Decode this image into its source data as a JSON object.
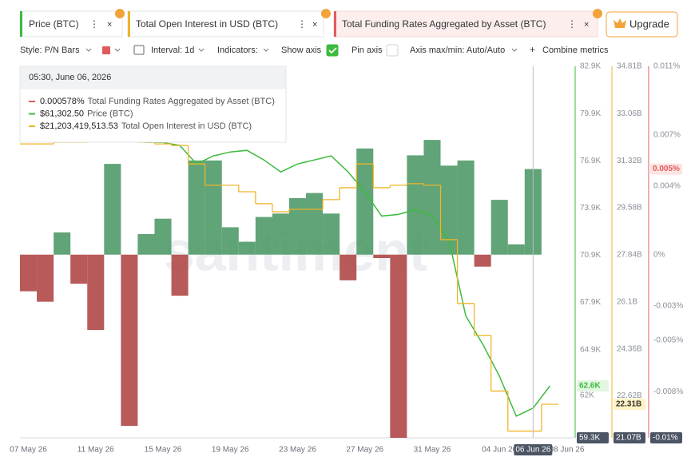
{
  "upgrade": "Upgrade",
  "watermark": "santiment",
  "toolbar": {
    "style": "Style: P/N Bars",
    "interval": "Interval: 1d",
    "indicators": "Indicators:",
    "show_axis": "Show axis",
    "show_axis_checked": true,
    "pin_axis": "Pin axis",
    "pin_axis_checked": false,
    "axis_minmax": "Axis max/min: Auto/Auto",
    "combine": "Combine metrics"
  },
  "tooltip": {
    "date": "05:30, June 06, 2026",
    "order": [
      2,
      0,
      1
    ]
  },
  "chart_data": {
    "type": "bar",
    "categories": [
      "07 May 26",
      null,
      null,
      null,
      "11 May 26",
      null,
      null,
      null,
      "15 May 26",
      null,
      null,
      null,
      "19 May 26",
      null,
      null,
      null,
      "23 May 26",
      null,
      null,
      null,
      "27 May 26",
      null,
      null,
      null,
      "31 May 26",
      null,
      null,
      null,
      "04 Jun 26",
      null,
      "06 Jun 26",
      null,
      "08 Jun 26"
    ],
    "ylim": [
      59300,
      82900
    ],
    "yticks": [
      {
        "value": 82900,
        "label": "82.9K"
      },
      {
        "value": 79900,
        "label": "79.9K"
      },
      {
        "value": 76900,
        "label": "76.9K"
      },
      {
        "value": 73900,
        "label": "73.9K"
      },
      {
        "value": 70900,
        "label": "70.9K"
      },
      {
        "value": 67900,
        "label": "67.9K"
      },
      {
        "value": 64900,
        "label": "64.9K"
      },
      {
        "value": 62000,
        "label": "62K"
      }
    ],
    "y2lim": [
      21070000000,
      34810000000
    ],
    "y2ticks": [
      {
        "value": 34810000000,
        "label": "34.81B"
      },
      {
        "value": 33060000000,
        "label": "33.06B"
      },
      {
        "value": 31320000000,
        "label": "31.32B"
      },
      {
        "value": 29580000000,
        "label": "29.58B"
      },
      {
        "value": 27840000000,
        "label": "27.84B"
      },
      {
        "value": 26100000000,
        "label": "26.1B"
      },
      {
        "value": 24360000000,
        "label": "24.36B"
      },
      {
        "value": 22620000000,
        "label": "22.62B"
      }
    ],
    "y3lim": [
      -0.0107,
      0.011
    ],
    "y3ticks": [
      {
        "value": 0.011,
        "label": "0.011%"
      },
      {
        "value": 0.007,
        "label": "0.007%"
      },
      {
        "value": 0.004,
        "label": "0.004%"
      },
      {
        "value": 0,
        "label": "0%"
      },
      {
        "value": -0.003,
        "label": "-0.003%"
      },
      {
        "value": -0.005,
        "label": "-0.005%"
      },
      {
        "value": -0.008,
        "label": "-0.008%"
      }
    ],
    "grid": false,
    "crosshair": {
      "index": 30,
      "y": {
        "value": 59300,
        "label": "59.3K"
      },
      "y2": {
        "value": 21070000000,
        "label": "21.07B"
      },
      "y3": {
        "value": -0.0107,
        "label": "-0.01%"
      }
    },
    "series": [
      {
        "name": "Price (BTC)",
        "type": "line",
        "axis": "y",
        "color": "#3dbb3d",
        "values": [
          78480,
          78220,
          78375,
          78580,
          78480,
          78375,
          78220,
          78070,
          78070,
          77870,
          76700,
          77210,
          77460,
          77560,
          76950,
          76190,
          76700,
          76950,
          77210,
          76190,
          74920,
          73390,
          73490,
          73800,
          73390,
          71870,
          67040,
          65260,
          63220,
          60680,
          61190,
          62600,
          null
        ],
        "current": {
          "value": 62600,
          "label": "62.6K"
        },
        "hover": {
          "value": 61302.5,
          "label": "$61,302.50"
        }
      },
      {
        "name": "Total Open Interest in USD (BTC)",
        "type": "step",
        "axis": "y2",
        "color": "#f0b429",
        "values": [
          31940000000,
          31940000000,
          32000000000,
          32000000000,
          32090000000,
          32090000000,
          32090000000,
          32000000000,
          31940000000,
          31880000000,
          31200000000,
          30410000000,
          30410000000,
          30170000000,
          29730000000,
          29430000000,
          29520000000,
          29520000000,
          29880000000,
          30320000000,
          31200000000,
          30320000000,
          30410000000,
          30470000000,
          30410000000,
          28400000000,
          26040000000,
          24860000000,
          22800000000,
          21320000000,
          21320000000,
          22310000000,
          null
        ],
        "current": {
          "value": 22310000000,
          "label": "22.31B"
        },
        "hover": {
          "value": 21203419513.53,
          "label": "$21,203,419,513.53"
        }
      },
      {
        "name": "Total Funding Rates Aggregated by Asset (BTC)",
        "type": "bar",
        "axis": "y3",
        "color": "#e05c5c",
        "positive_color": "#4f9a68",
        "negative_color": "#b04848",
        "values": [
          -0.00214,
          -0.00275,
          0.0013,
          -0.0017,
          -0.0044,
          0.0053,
          -0.01,
          0.0012,
          0.0021,
          -0.0024,
          0.0055,
          0.0055,
          0.0016,
          0.00075,
          0.0022,
          0.0024,
          0.0033,
          0.0036,
          0.0024,
          -0.0015,
          0.0062,
          -0.0002,
          -0.0107,
          0.0058,
          0.0067,
          0.0052,
          0.0055,
          -0.0007,
          0.0032,
          0.0006,
          0.005,
          null,
          null
        ],
        "current": {
          "value": 0.005,
          "label": "0.005%"
        },
        "hover": {
          "value": 0.000578,
          "label": "0.000578%"
        }
      }
    ]
  }
}
